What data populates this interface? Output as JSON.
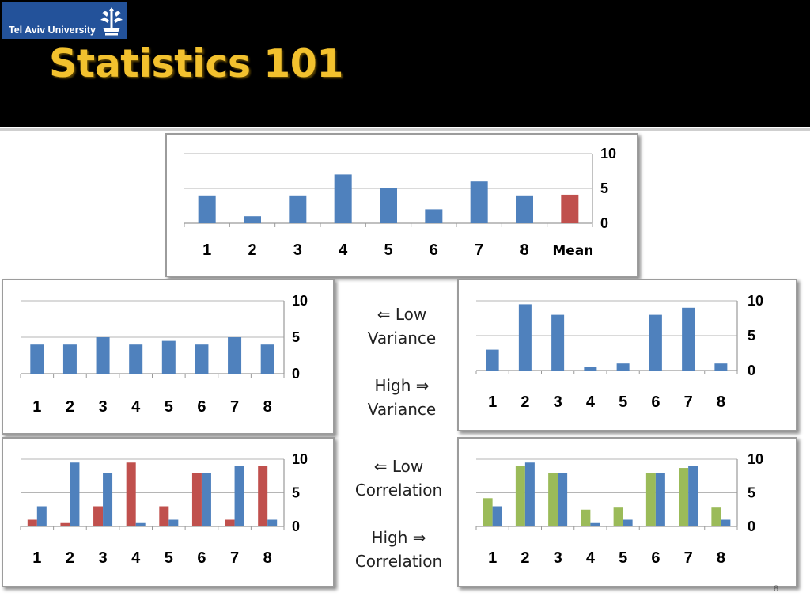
{
  "logo": {
    "text": "Tel Aviv University",
    "emblem": "tel-aviv-university-emblem-icon"
  },
  "title": "Statistics 101",
  "captions": {
    "variance": {
      "low_1": "⇐ Low",
      "low_2": "Variance",
      "high_1": "High  ⇒",
      "high_2": "Variance"
    },
    "correlation": {
      "low_1": "⇐ Low",
      "low_2": "Correlation",
      "high_1": "High  ⇒",
      "high_2": "Correlation"
    }
  },
  "page_number": "8",
  "colors": {
    "header": "#000000",
    "title": "#F2C12E",
    "blue": "#4F81BD",
    "red": "#C0504D",
    "green": "#9BBB59"
  },
  "chart_data": [
    {
      "id": "mean-chart",
      "type": "bar",
      "categories": [
        "1",
        "2",
        "3",
        "4",
        "5",
        "6",
        "7",
        "8",
        "Mean"
      ],
      "series": [
        {
          "color": "#4F81BD",
          "values": [
            4,
            1,
            4,
            7,
            5,
            2,
            6,
            4,
            null
          ]
        },
        {
          "color": "#C0504D",
          "values": [
            null,
            null,
            null,
            null,
            null,
            null,
            null,
            null,
            4.1
          ]
        }
      ],
      "yticks": [
        0,
        5,
        10
      ],
      "ylim": [
        0,
        10
      ],
      "yaxis": "right",
      "grid": true
    },
    {
      "id": "low-variance-chart",
      "type": "bar",
      "categories": [
        "1",
        "2",
        "3",
        "4",
        "5",
        "6",
        "7",
        "8"
      ],
      "series": [
        {
          "color": "#4F81BD",
          "values": [
            4,
            4,
            5,
            4,
            4.5,
            4,
            5,
            4
          ]
        }
      ],
      "yticks": [
        0,
        5,
        10
      ],
      "ylim": [
        0,
        10
      ],
      "yaxis": "right",
      "grid": true
    },
    {
      "id": "high-variance-chart",
      "type": "bar",
      "categories": [
        "1",
        "2",
        "3",
        "4",
        "5",
        "6",
        "7",
        "8"
      ],
      "series": [
        {
          "color": "#4F81BD",
          "values": [
            3,
            9.5,
            8,
            0.5,
            1,
            8,
            9,
            1
          ]
        }
      ],
      "yticks": [
        0,
        5,
        10
      ],
      "ylim": [
        0,
        10
      ],
      "yaxis": "right",
      "grid": true
    },
    {
      "id": "low-correlation-chart",
      "type": "bar",
      "categories": [
        "1",
        "2",
        "3",
        "4",
        "5",
        "6",
        "7",
        "8"
      ],
      "series": [
        {
          "color": "#C0504D",
          "values": [
            1,
            0.5,
            3,
            9.5,
            3,
            8,
            1,
            9
          ]
        },
        {
          "color": "#4F81BD",
          "values": [
            3,
            9.5,
            8,
            0.5,
            1,
            8,
            9,
            1
          ]
        }
      ],
      "yticks": [
        0,
        5,
        10
      ],
      "ylim": [
        0,
        10
      ],
      "yaxis": "right",
      "grid": true
    },
    {
      "id": "high-correlation-chart",
      "type": "bar",
      "categories": [
        "1",
        "2",
        "3",
        "4",
        "5",
        "6",
        "7",
        "8"
      ],
      "series": [
        {
          "color": "#9BBB59",
          "values": [
            4.2,
            9,
            8,
            2.5,
            2.8,
            8,
            8.7,
            2.8
          ]
        },
        {
          "color": "#4F81BD",
          "values": [
            3,
            9.5,
            8,
            0.5,
            1,
            8,
            9,
            1
          ]
        }
      ],
      "yticks": [
        0,
        5,
        10
      ],
      "ylim": [
        0,
        10
      ],
      "yaxis": "right",
      "grid": true
    }
  ]
}
